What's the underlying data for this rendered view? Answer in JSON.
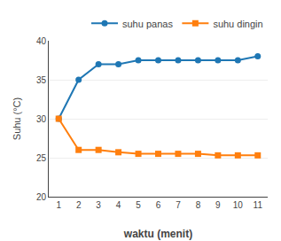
{
  "chart_data": {
    "type": "line",
    "x": [
      1,
      2,
      3,
      4,
      5,
      6,
      7,
      8,
      9,
      10,
      11
    ],
    "series": [
      {
        "name": "suhu panas",
        "marker": "circle",
        "values": [
          30,
          35,
          37,
          37,
          37.5,
          37.5,
          37.5,
          37.5,
          37.5,
          37.5,
          38
        ]
      },
      {
        "name": "suhu dingin",
        "marker": "square",
        "values": [
          30,
          26,
          26,
          25.7,
          25.5,
          25.5,
          25.5,
          25.5,
          25.3,
          25.3,
          25.3
        ]
      }
    ],
    "xlabel": "waktu (menit)",
    "ylabel": "Suhu (°C)",
    "xlim": [
      0.5,
      11.5
    ],
    "xticks": [
      1,
      2,
      3,
      4,
      5,
      6,
      7,
      8,
      9,
      10,
      11
    ],
    "ylim": [
      20,
      40
    ],
    "yticks": [
      20,
      25,
      30,
      35,
      40
    ],
    "grid": true,
    "legend": "upper right"
  }
}
